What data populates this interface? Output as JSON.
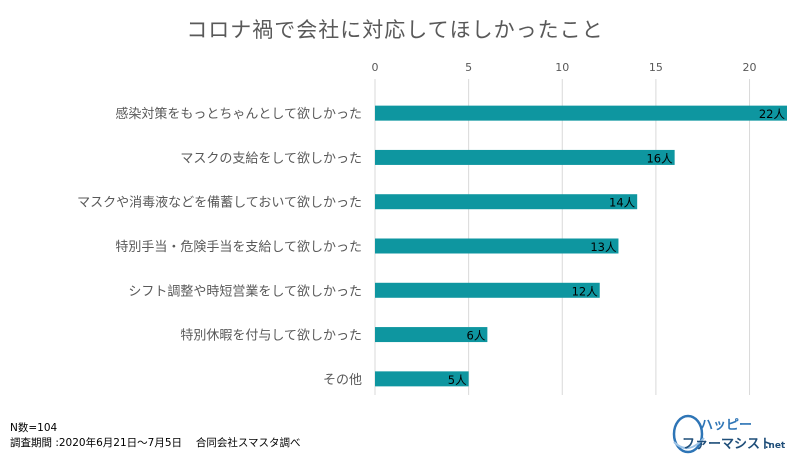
{
  "chart_data": {
    "type": "bar",
    "orientation": "horizontal",
    "title": "コロナ禍で会社に対応してほしかったこと",
    "categories": [
      "感染対策をもっとちゃんとして欲しかった",
      "マスクの支給をして欲しかった",
      "マスクや消毒液などを備蓄しておいて欲しかった",
      "特別手当・危険手当を支給して欲しかった",
      "シフト調整や時短営業をして欲しかった",
      "特別休暇を付与して欲しかった",
      "その他"
    ],
    "values": [
      22,
      16,
      14,
      13,
      12,
      6,
      5
    ],
    "data_labels": [
      "22人",
      "16人",
      "14人",
      "13人",
      "12人",
      "6人",
      "5人"
    ],
    "xlim": [
      0,
      22
    ],
    "x_ticks": [
      0,
      5,
      10,
      15,
      20
    ],
    "x_tick_labels": [
      "0",
      "5",
      "10",
      "15",
      "20"
    ],
    "x_axis_position": "top",
    "grid": true,
    "bar_color": "#0E96A0"
  },
  "notes": {
    "sample": "N数=104",
    "period": "調査期間 :2020年6月21日～7月5日　 合同会社スマスタ調べ"
  },
  "logo": {
    "text_top": "ハッピー",
    "text_bottom": "ファーマシスト",
    "suffix": ".net"
  }
}
